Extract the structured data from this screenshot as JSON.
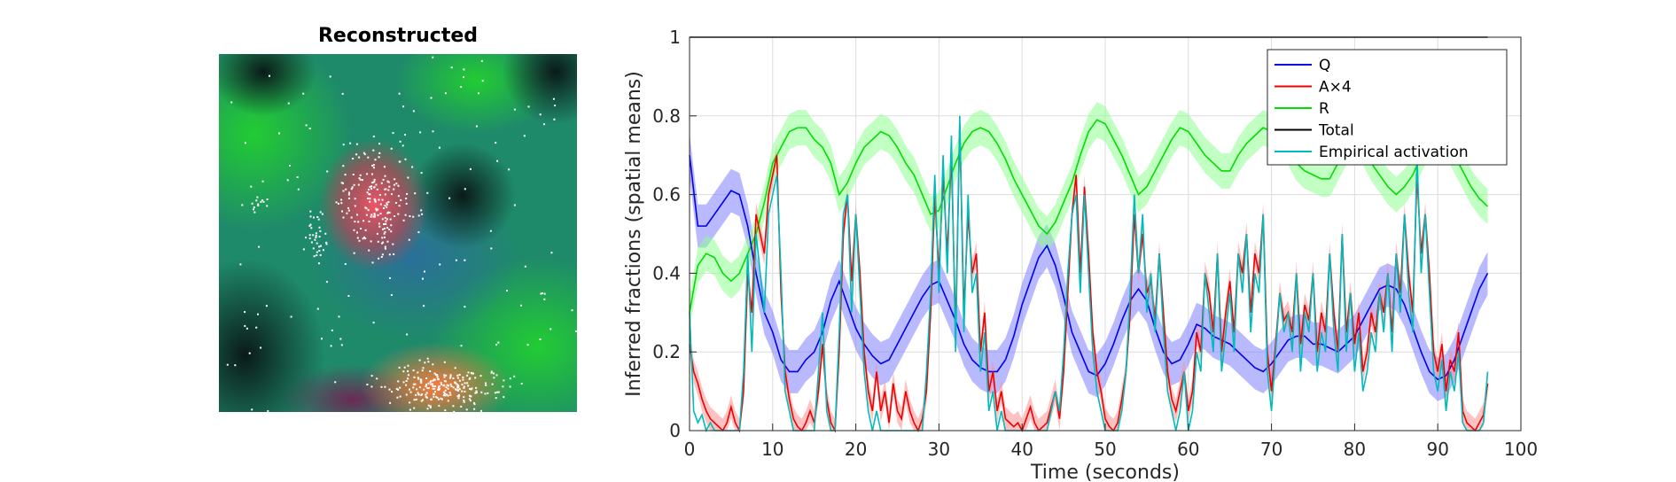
{
  "left_panel": {
    "title": "Reconstructed",
    "colors": {
      "background": "#1f8a6a",
      "green": "#22cc33",
      "red": "#ee5566",
      "orange": "#ff7a3a",
      "dark": "#0a1a18",
      "blue": "#2b6f9a",
      "purple": "#6a2a55",
      "dots": "#ffffff"
    }
  },
  "chart_data": {
    "type": "line",
    "xlabel": "Time (seconds)",
    "ylabel": "Inferred fractions (spatial means)",
    "xlim": [
      0,
      100
    ],
    "ylim": [
      0,
      1
    ],
    "xticks": [
      0,
      10,
      20,
      30,
      40,
      50,
      60,
      70,
      80,
      90,
      100
    ],
    "yticks": [
      0,
      0.2,
      0.4,
      0.6,
      0.8,
      1
    ],
    "xtick_labels": [
      "0",
      "10",
      "20",
      "30",
      "40",
      "50",
      "60",
      "70",
      "80",
      "90",
      "100"
    ],
    "ytick_labels": [
      "0",
      "0.2",
      "0.4",
      "0.6",
      "0.8",
      "1"
    ],
    "grid": true,
    "legend_position": "top-right",
    "series": [
      {
        "name": "Q",
        "color": "#0000ee",
        "band_color": "#8080ff",
        "x": [
          0,
          1,
          2,
          3,
          4,
          5,
          6,
          7,
          8,
          9,
          10,
          11,
          12,
          13,
          14,
          15,
          16,
          17,
          18,
          19,
          20,
          21,
          22,
          23,
          24,
          25,
          26,
          27,
          28,
          29,
          30,
          31,
          32,
          33,
          34,
          35,
          36,
          37,
          38,
          39,
          40,
          41,
          42,
          43,
          44,
          45,
          46,
          47,
          48,
          49,
          50,
          51,
          52,
          53,
          54,
          55,
          56,
          57,
          58,
          59,
          60,
          61,
          62,
          63,
          64,
          65,
          66,
          67,
          68,
          69,
          70,
          71,
          72,
          73,
          74,
          75,
          76,
          77,
          78,
          79,
          80,
          81,
          82,
          83,
          84,
          85,
          86,
          87,
          88,
          89,
          90,
          91,
          92,
          93,
          94,
          95,
          96
        ],
        "y": [
          0.7,
          0.52,
          0.52,
          0.55,
          0.58,
          0.61,
          0.6,
          0.52,
          0.4,
          0.3,
          0.25,
          0.18,
          0.15,
          0.15,
          0.18,
          0.2,
          0.25,
          0.33,
          0.38,
          0.32,
          0.26,
          0.22,
          0.19,
          0.17,
          0.18,
          0.22,
          0.26,
          0.3,
          0.34,
          0.37,
          0.38,
          0.33,
          0.28,
          0.22,
          0.18,
          0.16,
          0.15,
          0.15,
          0.18,
          0.24,
          0.32,
          0.38,
          0.44,
          0.47,
          0.42,
          0.34,
          0.25,
          0.2,
          0.15,
          0.14,
          0.17,
          0.22,
          0.28,
          0.33,
          0.36,
          0.33,
          0.26,
          0.2,
          0.17,
          0.18,
          0.22,
          0.27,
          0.26,
          0.24,
          0.23,
          0.22,
          0.2,
          0.18,
          0.16,
          0.15,
          0.17,
          0.2,
          0.23,
          0.24,
          0.24,
          0.22,
          0.22,
          0.21,
          0.2,
          0.22,
          0.24,
          0.28,
          0.32,
          0.36,
          0.37,
          0.36,
          0.32,
          0.26,
          0.2,
          0.15,
          0.13,
          0.14,
          0.18,
          0.24,
          0.3,
          0.36,
          0.4
        ],
        "band": 0.055
      },
      {
        "name": "A×4",
        "color": "#ee0000",
        "band_color": "#ff9090",
        "x": [
          0,
          0.5,
          1,
          1.5,
          2,
          2.5,
          3,
          3.5,
          4,
          4.5,
          5,
          5.5,
          6,
          6.5,
          7,
          7.5,
          8,
          8.5,
          9,
          9.5,
          10,
          10.5,
          11,
          11.5,
          12,
          12.5,
          13,
          13.5,
          14,
          14.5,
          15,
          15.5,
          16,
          16.5,
          17,
          17.5,
          18,
          18.5,
          19,
          19.5,
          20,
          20.5,
          21,
          21.5,
          22,
          22.5,
          23,
          23.5,
          24,
          24.5,
          25,
          25.5,
          26,
          26.5,
          27,
          27.5,
          28,
          28.5,
          29,
          29.5,
          30,
          30.5,
          31,
          31.5,
          32,
          32.5,
          33,
          33.5,
          34,
          34.5,
          35,
          35.5,
          36,
          36.5,
          37,
          37.5,
          38,
          38.5,
          39,
          39.5,
          40,
          40.5,
          41,
          41.5,
          42,
          42.5,
          43,
          43.5,
          44,
          44.5,
          45,
          45.5,
          46,
          46.5,
          47,
          47.5,
          48,
          48.5,
          49,
          49.5,
          50,
          50.5,
          51,
          51.5,
          52,
          52.5,
          53,
          53.5,
          54,
          54.5,
          55,
          55.5,
          56,
          56.5,
          57,
          57.5,
          58,
          58.5,
          59,
          59.5,
          60,
          60.5,
          61,
          61.5,
          62,
          62.5,
          63,
          63.5,
          64,
          64.5,
          65,
          65.5,
          66,
          66.5,
          67,
          67.5,
          68,
          68.5,
          69,
          69.5,
          70,
          70.5,
          71,
          71.5,
          72,
          72.5,
          73,
          73.5,
          74,
          74.5,
          75,
          75.5,
          76,
          76.5,
          77,
          77.5,
          78,
          78.5,
          79,
          79.5,
          80,
          80.5,
          81,
          81.5,
          82,
          82.5,
          83,
          83.5,
          84,
          84.5,
          85,
          85.5,
          86,
          86.5,
          87,
          87.5,
          88,
          88.5,
          89,
          89.5,
          90,
          90.5,
          91,
          91.5,
          92,
          92.5,
          93,
          93.5,
          94,
          94.5,
          95,
          95.5,
          96
        ],
        "y": [
          0.22,
          0.15,
          0.12,
          0.08,
          0.05,
          0.03,
          0.02,
          0.01,
          0.0,
          0.02,
          0.06,
          0.02,
          0.0,
          0.1,
          0.4,
          0.3,
          0.55,
          0.5,
          0.45,
          0.6,
          0.65,
          0.7,
          0.35,
          0.15,
          0.08,
          0.03,
          0.01,
          0.0,
          0.02,
          0.05,
          0.02,
          0.1,
          0.22,
          0.08,
          0.02,
          0.0,
          0.2,
          0.5,
          0.6,
          0.38,
          0.55,
          0.4,
          0.2,
          0.1,
          0.05,
          0.15,
          0.05,
          0.1,
          0.02,
          0.12,
          0.05,
          0.03,
          0.1,
          0.05,
          0.02,
          0.0,
          0.03,
          0.1,
          0.3,
          0.6,
          0.4,
          0.65,
          0.45,
          0.7,
          0.25,
          0.78,
          0.3,
          0.55,
          0.4,
          0.45,
          0.2,
          0.3,
          0.1,
          0.15,
          0.05,
          0.1,
          0.03,
          0.02,
          0.01,
          0.02,
          0.0,
          0.03,
          0.06,
          0.02,
          0.0,
          0.01,
          0.02,
          0.06,
          0.1,
          0.03,
          0.15,
          0.35,
          0.55,
          0.65,
          0.4,
          0.62,
          0.45,
          0.25,
          0.15,
          0.1,
          0.03,
          0.01,
          0.0,
          0.02,
          0.08,
          0.15,
          0.3,
          0.55,
          0.4,
          0.5,
          0.35,
          0.38,
          0.28,
          0.45,
          0.3,
          0.15,
          0.08,
          0.05,
          0.1,
          0.15,
          0.05,
          0.1,
          0.25,
          0.2,
          0.4,
          0.35,
          0.25,
          0.45,
          0.2,
          0.3,
          0.38,
          0.25,
          0.45,
          0.4,
          0.5,
          0.3,
          0.45,
          0.4,
          0.55,
          0.2,
          0.1,
          0.22,
          0.35,
          0.28,
          0.3,
          0.25,
          0.4,
          0.22,
          0.32,
          0.28,
          0.4,
          0.2,
          0.3,
          0.25,
          0.45,
          0.3,
          0.2,
          0.5,
          0.25,
          0.35,
          0.22,
          0.3,
          0.15,
          0.2,
          0.3,
          0.25,
          0.35,
          0.3,
          0.4,
          0.25,
          0.45,
          0.35,
          0.55,
          0.4,
          0.3,
          0.65,
          0.45,
          0.55,
          0.4,
          0.2,
          0.15,
          0.22,
          0.1,
          0.18,
          0.15,
          0.25,
          0.05,
          0.02,
          0.01,
          0.0,
          0.02,
          0.04,
          0.12
        ],
        "band": 0.03
      },
      {
        "name": "R",
        "color": "#00dd00",
        "band_color": "#90ff90",
        "x": [
          0,
          1,
          2,
          3,
          4,
          5,
          6,
          7,
          8,
          9,
          10,
          11,
          12,
          13,
          14,
          15,
          16,
          17,
          18,
          19,
          20,
          21,
          22,
          23,
          24,
          25,
          26,
          27,
          28,
          29,
          30,
          31,
          32,
          33,
          34,
          35,
          36,
          37,
          38,
          39,
          40,
          41,
          42,
          43,
          44,
          45,
          46,
          47,
          48,
          49,
          50,
          51,
          52,
          53,
          54,
          55,
          56,
          57,
          58,
          59,
          60,
          61,
          62,
          63,
          64,
          65,
          66,
          67,
          68,
          69,
          70,
          71,
          72,
          73,
          74,
          75,
          76,
          77,
          78,
          79,
          80,
          81,
          82,
          83,
          84,
          85,
          86,
          87,
          88,
          89,
          90,
          91,
          92,
          93,
          94,
          95,
          96
        ],
        "y": [
          0.3,
          0.42,
          0.45,
          0.44,
          0.4,
          0.38,
          0.4,
          0.45,
          0.5,
          0.58,
          0.68,
          0.72,
          0.76,
          0.77,
          0.77,
          0.74,
          0.72,
          0.68,
          0.6,
          0.63,
          0.68,
          0.72,
          0.74,
          0.76,
          0.75,
          0.72,
          0.68,
          0.65,
          0.6,
          0.55,
          0.56,
          0.62,
          0.68,
          0.73,
          0.76,
          0.77,
          0.76,
          0.73,
          0.69,
          0.64,
          0.6,
          0.56,
          0.52,
          0.5,
          0.53,
          0.58,
          0.63,
          0.7,
          0.76,
          0.79,
          0.78,
          0.74,
          0.7,
          0.65,
          0.6,
          0.62,
          0.66,
          0.7,
          0.74,
          0.77,
          0.76,
          0.73,
          0.7,
          0.68,
          0.66,
          0.66,
          0.7,
          0.73,
          0.75,
          0.77,
          0.76,
          0.74,
          0.72,
          0.68,
          0.66,
          0.65,
          0.64,
          0.64,
          0.68,
          0.72,
          0.74,
          0.72,
          0.68,
          0.65,
          0.62,
          0.6,
          0.62,
          0.65,
          0.7,
          0.74,
          0.76,
          0.74,
          0.7,
          0.66,
          0.62,
          0.59,
          0.57
        ],
        "band": 0.045
      },
      {
        "name": "Total",
        "color": "#000000",
        "x": [
          0,
          96
        ],
        "y": [
          1,
          1
        ]
      },
      {
        "name": "Empirical activation",
        "color": "#00bbbb",
        "x": [
          0,
          0.5,
          1,
          1.5,
          2,
          2.5,
          3,
          3.5,
          4,
          4.5,
          5,
          5.5,
          6,
          6.5,
          7,
          7.5,
          8,
          8.5,
          9,
          9.5,
          10,
          10.5,
          11,
          11.5,
          12,
          12.5,
          13,
          13.5,
          14,
          14.5,
          15,
          15.5,
          16,
          16.5,
          17,
          17.5,
          18,
          18.5,
          19,
          19.5,
          20,
          20.5,
          21,
          21.5,
          22,
          22.5,
          23,
          23.5,
          24,
          24.5,
          25,
          25.5,
          26,
          26.5,
          27,
          27.5,
          28,
          28.5,
          29,
          29.5,
          30,
          30.5,
          31,
          31.5,
          32,
          32.5,
          33,
          33.5,
          34,
          34.5,
          35,
          35.5,
          36,
          36.5,
          37,
          37.5,
          38,
          38.5,
          39,
          39.5,
          40,
          40.5,
          41,
          41.5,
          42,
          42.5,
          43,
          43.5,
          44,
          44.5,
          45,
          45.5,
          46,
          46.5,
          47,
          47.5,
          48,
          48.5,
          49,
          49.5,
          50,
          50.5,
          51,
          51.5,
          52,
          52.5,
          53,
          53.5,
          54,
          54.5,
          55,
          55.5,
          56,
          56.5,
          57,
          57.5,
          58,
          58.5,
          59,
          59.5,
          60,
          60.5,
          61,
          61.5,
          62,
          62.5,
          63,
          63.5,
          64,
          64.5,
          65,
          65.5,
          66,
          66.5,
          67,
          67.5,
          68,
          68.5,
          69,
          69.5,
          70,
          70.5,
          71,
          71.5,
          72,
          72.5,
          73,
          73.5,
          74,
          74.5,
          75,
          75.5,
          76,
          76.5,
          77,
          77.5,
          78,
          78.5,
          79,
          79.5,
          80,
          80.5,
          81,
          81.5,
          82,
          82.5,
          83,
          83.5,
          84,
          84.5,
          85,
          85.5,
          86,
          86.5,
          87,
          87.5,
          88,
          88.5,
          89,
          89.5,
          90,
          90.5,
          91,
          91.5,
          92,
          92.5,
          93,
          93.5,
          94,
          94.5,
          95,
          95.5,
          96
        ],
        "y": [
          0.3,
          0.05,
          0.02,
          0.04,
          0.0,
          0.02,
          0.0,
          0.0,
          0.0,
          0.0,
          0.0,
          0.0,
          0.0,
          0.15,
          0.45,
          0.2,
          0.5,
          0.4,
          0.3,
          0.55,
          0.6,
          0.65,
          0.4,
          0.1,
          0.05,
          0.0,
          0.0,
          0.0,
          0.0,
          0.0,
          0.0,
          0.15,
          0.3,
          0.05,
          0.0,
          0.0,
          0.25,
          0.55,
          0.6,
          0.3,
          0.55,
          0.35,
          0.15,
          0.05,
          0.0,
          0.05,
          0.0,
          0.0,
          0.0,
          0.0,
          0.0,
          0.0,
          0.0,
          0.0,
          0.0,
          0.0,
          0.0,
          0.15,
          0.35,
          0.65,
          0.35,
          0.7,
          0.4,
          0.75,
          0.2,
          0.8,
          0.25,
          0.6,
          0.35,
          0.4,
          0.15,
          0.25,
          0.05,
          0.1,
          0.0,
          0.05,
          0.0,
          0.0,
          0.0,
          0.0,
          0.0,
          0.0,
          0.0,
          0.0,
          0.0,
          0.0,
          0.0,
          0.05,
          0.1,
          0.05,
          0.2,
          0.4,
          0.55,
          0.6,
          0.35,
          0.6,
          0.4,
          0.2,
          0.1,
          0.05,
          0.0,
          0.0,
          0.0,
          0.0,
          0.05,
          0.15,
          0.35,
          0.6,
          0.4,
          0.55,
          0.3,
          0.4,
          0.25,
          0.45,
          0.25,
          0.1,
          0.05,
          0.0,
          0.05,
          0.15,
          0.0,
          0.05,
          0.2,
          0.15,
          0.4,
          0.3,
          0.2,
          0.45,
          0.15,
          0.25,
          0.35,
          0.2,
          0.45,
          0.35,
          0.5,
          0.25,
          0.4,
          0.35,
          0.55,
          0.15,
          0.05,
          0.2,
          0.35,
          0.25,
          0.3,
          0.2,
          0.4,
          0.15,
          0.3,
          0.25,
          0.4,
          0.15,
          0.25,
          0.2,
          0.45,
          0.25,
          0.15,
          0.5,
          0.2,
          0.35,
          0.15,
          0.25,
          0.1,
          0.15,
          0.25,
          0.2,
          0.35,
          0.25,
          0.4,
          0.2,
          0.45,
          0.3,
          0.55,
          0.35,
          0.25,
          0.7,
          0.4,
          0.55,
          0.35,
          0.15,
          0.1,
          0.18,
          0.05,
          0.15,
          0.1,
          0.2,
          0.02,
          0.0,
          0.0,
          0.0,
          0.0,
          0.02,
          0.15
        ]
      }
    ]
  }
}
